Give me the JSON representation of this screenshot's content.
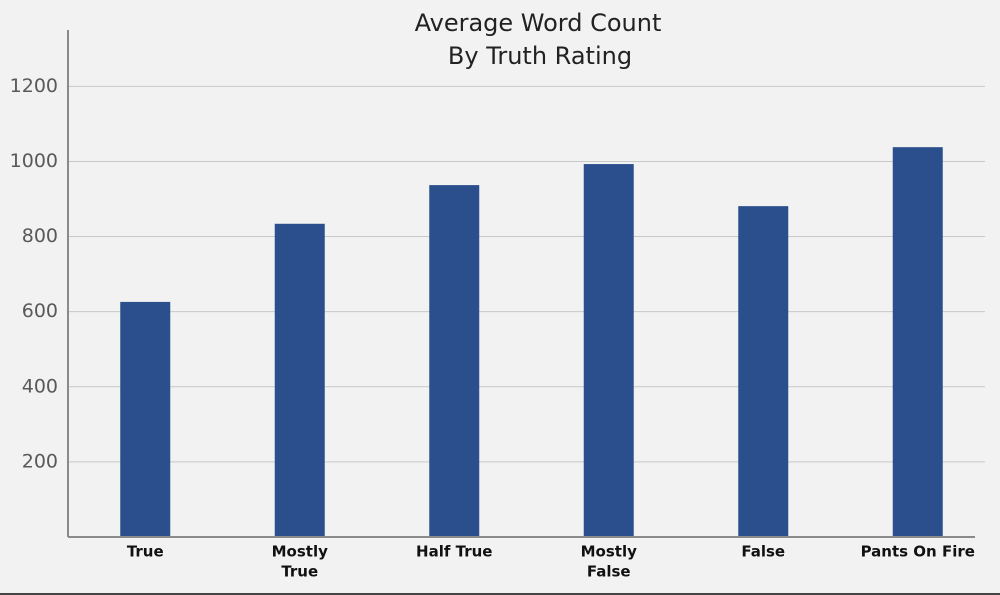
{
  "chart_data": {
    "type": "bar",
    "title": [
      "Average Word Count",
      "By Truth Rating"
    ],
    "categories": [
      [
        "True"
      ],
      [
        "Mostly",
        "True"
      ],
      [
        "Half True"
      ],
      [
        "Mostly",
        "False"
      ],
      [
        "False"
      ],
      [
        "Pants On Fire"
      ]
    ],
    "values": [
      626,
      834,
      937,
      993,
      881,
      1038
    ],
    "color": "#2b4f8c",
    "ylim": [
      0,
      1350
    ],
    "yticks": [
      200,
      400,
      600,
      800,
      1000,
      1200
    ],
    "grid": true
  }
}
